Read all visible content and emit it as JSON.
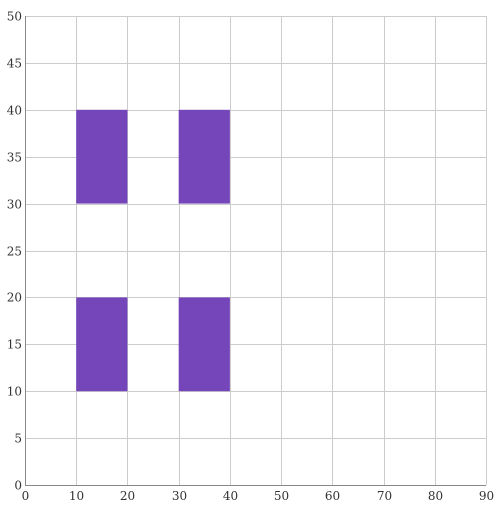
{
  "chart_data": {
    "type": "bar",
    "title": "",
    "xlabel": "",
    "ylabel": "",
    "xlim": [
      0,
      90
    ],
    "ylim": [
      0,
      50
    ],
    "x_ticks": [
      "0",
      "10",
      "20",
      "30",
      "40",
      "50",
      "60",
      "70",
      "80",
      "90"
    ],
    "y_ticks": [
      "0",
      "5",
      "10",
      "15",
      "20",
      "25",
      "30",
      "35",
      "40",
      "45",
      "50"
    ],
    "grid": true,
    "color": "#7446b9",
    "rectangles": [
      {
        "x0": 10,
        "x1": 20,
        "y0": 30,
        "y1": 40
      },
      {
        "x0": 30,
        "x1": 40,
        "y0": 30,
        "y1": 40
      },
      {
        "x0": 10,
        "x1": 20,
        "y0": 10,
        "y1": 20
      },
      {
        "x0": 30,
        "x1": 40,
        "y0": 10,
        "y1": 20
      }
    ]
  }
}
